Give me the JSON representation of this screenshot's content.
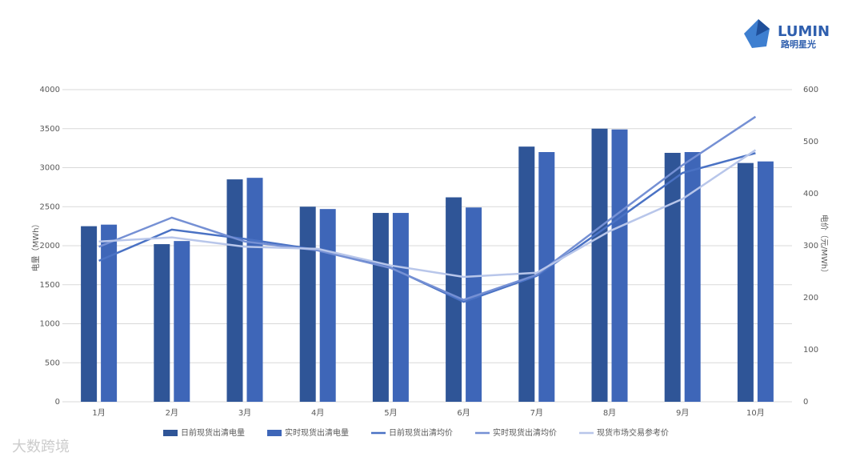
{
  "brand": {
    "name": "LUMIN",
    "subname": "路明星光"
  },
  "watermark": "大数跨境",
  "chart_data": {
    "type": "bar",
    "y_label": "电量（MWh）",
    "y2_label": "电价（元/MWh）",
    "categories": [
      "1月",
      "2月",
      "3月",
      "4月",
      "5月",
      "6月",
      "7月",
      "8月",
      "9月",
      "10月"
    ],
    "ylim": [
      0,
      4000
    ],
    "yticks": [
      0,
      500,
      1000,
      1500,
      2000,
      2500,
      3000,
      3500,
      4000
    ],
    "y2lim": [
      0,
      600
    ],
    "y2ticks": [
      0,
      100,
      200,
      300,
      400,
      500,
      600
    ],
    "grid": true,
    "legend": "bottom",
    "series": [
      {
        "name": "日前现货出清电量",
        "type": "bar",
        "color": "#2f5597",
        "values": [
          2250,
          2020,
          2850,
          2500,
          2420,
          2620,
          3270,
          3500,
          3190,
          3060
        ]
      },
      {
        "name": "实时现货出清电量",
        "type": "bar",
        "color": "#3e66b8",
        "values": [
          2270,
          2060,
          2870,
          2470,
          2420,
          2490,
          3200,
          3490,
          3200,
          3080
        ]
      },
      {
        "name": "日前现货出清均价",
        "type": "line",
        "axis": "y2",
        "color": "#4a72c4",
        "values": [
          271,
          331,
          313,
          292,
          258,
          192,
          242,
          340,
          440,
          478
        ]
      },
      {
        "name": "实时现货出清均价",
        "type": "line",
        "axis": "y2",
        "color": "#7590d4",
        "values": [
          298,
          354,
          308,
          291,
          257,
          196,
          244,
          350,
          455,
          548
        ]
      },
      {
        "name": "现货市场交易参考价",
        "type": "line",
        "axis": "y2",
        "color": "#b8c6ea",
        "values": [
          308,
          316,
          298,
          294,
          262,
          240,
          248,
          328,
          390,
          484
        ]
      }
    ]
  }
}
